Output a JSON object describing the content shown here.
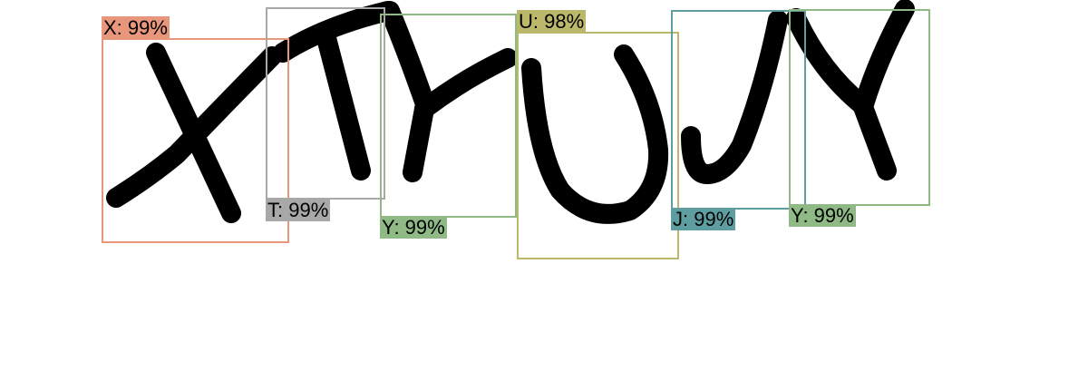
{
  "detections": [
    {
      "name": "x",
      "label": "X: 99%",
      "color": "#e8967c"
    },
    {
      "name": "t",
      "label": "T: 99%",
      "color": "#a8a8a8"
    },
    {
      "name": "y1",
      "label": "Y: 99%",
      "color": "#8fba86"
    },
    {
      "name": "u",
      "label": "U: 98%",
      "color": "#bcb86b"
    },
    {
      "name": "j",
      "label": "J: 99%",
      "color": "#5f9ea0"
    },
    {
      "name": "y2",
      "label": "Y: 99%",
      "color": "#8fba86"
    }
  ]
}
